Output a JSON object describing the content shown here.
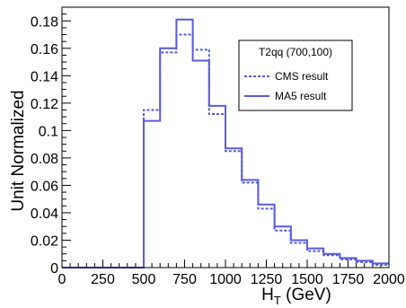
{
  "chart_data": {
    "type": "line",
    "title": "",
    "xlabel": "H",
    "xlabel_sub": "T",
    "xlabel_unit": " (GeV)",
    "ylabel": "Unit Normalized",
    "xlim": [
      0,
      2000
    ],
    "ylim": [
      0,
      0.19
    ],
    "x_ticks": [
      0,
      250,
      500,
      750,
      1000,
      1250,
      1500,
      1750,
      2000
    ],
    "x_tick_labels": [
      "0",
      "250",
      "500",
      "750",
      "1000",
      "1250",
      "1500",
      "1750",
      "2000"
    ],
    "y_ticks": [
      0,
      0.02,
      0.04,
      0.06,
      0.08,
      0.1,
      0.12,
      0.14,
      0.16,
      0.18
    ],
    "y_tick_labels": [
      "0",
      "0.02",
      "0.04",
      "0.06",
      "0.08",
      "0.1",
      "0.12",
      "0.14",
      "0.16",
      "0.18"
    ],
    "bin_edges": [
      0,
      100,
      200,
      300,
      400,
      500,
      600,
      700,
      800,
      900,
      1000,
      1100,
      1200,
      1300,
      1400,
      1500,
      1600,
      1700,
      1800,
      1900,
      2000
    ],
    "grid": false,
    "legend_position": "top-right",
    "legend_title": "T2qq (700,100)",
    "series": [
      {
        "name": "CMS result",
        "style": "dashed",
        "color": "#5b5bdc",
        "values": [
          0,
          0,
          0,
          0,
          0,
          0.115,
          0.157,
          0.17,
          0.159,
          0.112,
          0.085,
          0.062,
          0.043,
          0.027,
          0.018,
          0.012,
          0.009,
          0.006,
          0.004,
          0.002
        ]
      },
      {
        "name": "MA5 result",
        "style": "solid",
        "color": "#5b5bdc",
        "values": [
          0,
          0,
          0,
          0,
          0,
          0.107,
          0.16,
          0.181,
          0.151,
          0.118,
          0.087,
          0.064,
          0.046,
          0.03,
          0.02,
          0.014,
          0.01,
          0.007,
          0.005,
          0.003
        ]
      }
    ]
  }
}
